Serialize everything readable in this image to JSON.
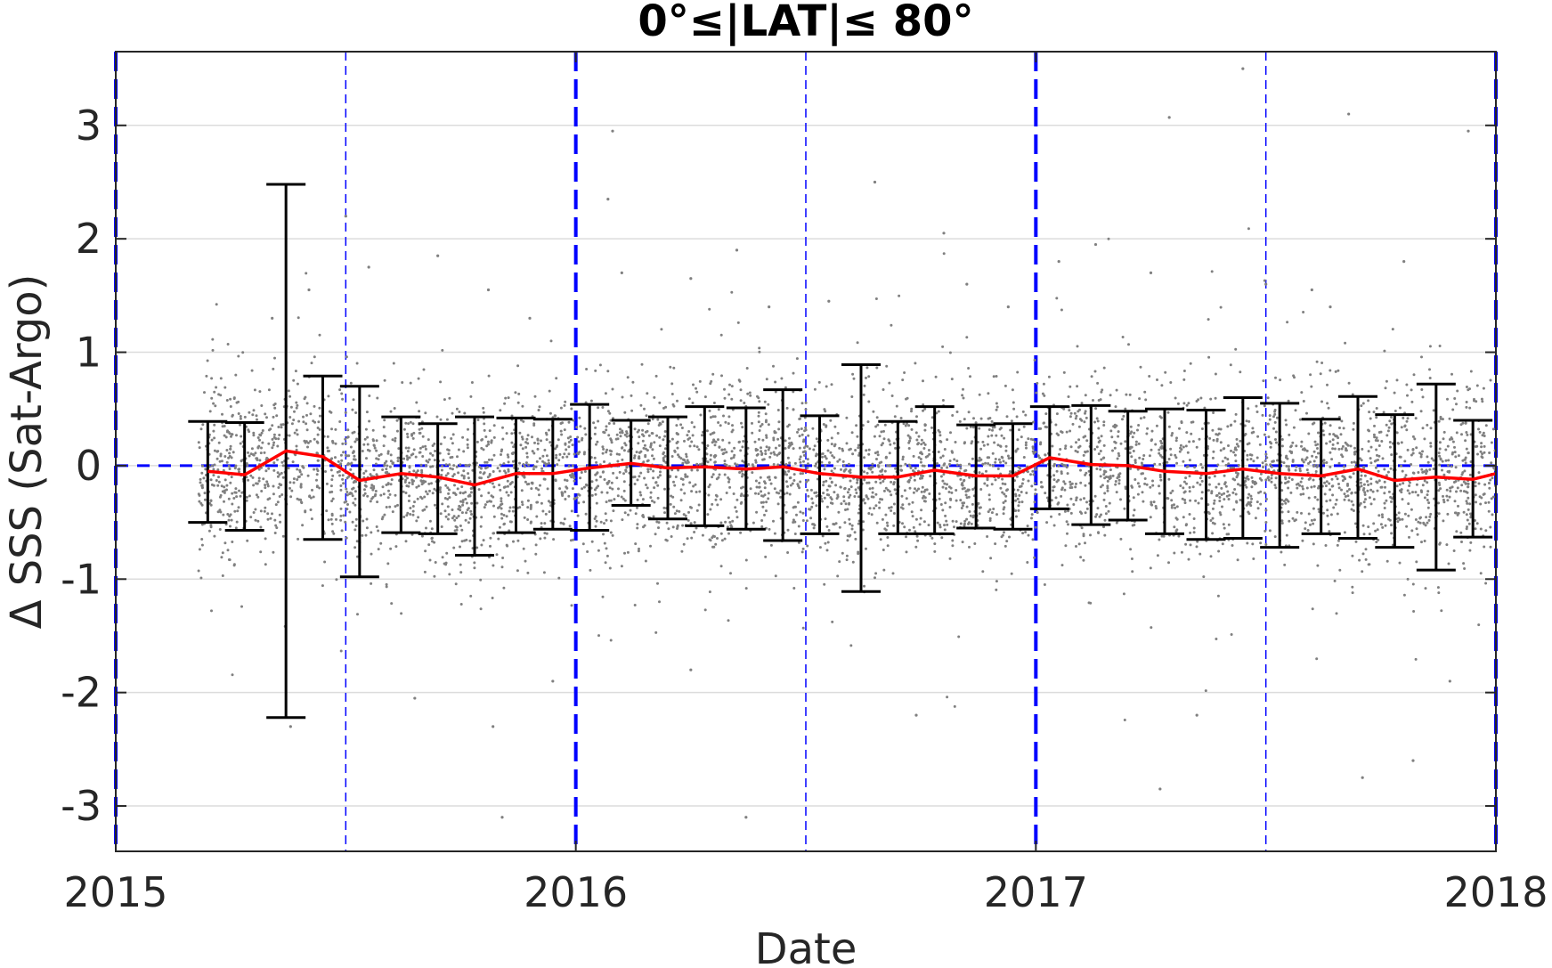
{
  "chart_data": {
    "type": "scatter",
    "title": "0°≤|LAT|≤ 80°",
    "xlabel": "Date",
    "ylabel": "Δ SSS (Sat-Argo)",
    "xlim": [
      2015.0,
      2018.0
    ],
    "ylim": [
      -3.4,
      3.65
    ],
    "xticks": [
      2015,
      2016,
      2017,
      2018
    ],
    "xtick_labels": [
      "2015",
      "2016",
      "2017",
      "2018"
    ],
    "yticks": [
      -3,
      -2,
      -1,
      0,
      1,
      2,
      3
    ],
    "ytick_labels": [
      "-3",
      "-2",
      "-1",
      "0",
      "1",
      "2",
      "3"
    ],
    "grid": true,
    "reference_lines": {
      "zero_line": 0,
      "year_boundaries": [
        2015.0,
        2016.0,
        2017.0,
        2018.0
      ],
      "half_year_marks": [
        2015.5,
        2016.5,
        2017.5
      ]
    },
    "colors": {
      "scatter": "#808080",
      "mean_line": "#ff0000",
      "error_bars": "#000000",
      "reference": "#0000ff",
      "grid": "#dcdcdc",
      "axes": "#262626"
    },
    "series": [
      {
        "type": "line",
        "x": [
          2015.2,
          2015.28,
          2015.37,
          2015.45,
          2015.53,
          2015.62,
          2015.7,
          2015.78,
          2015.87,
          2015.95,
          2016.03,
          2016.12,
          2016.2,
          2016.28,
          2016.37,
          2016.45,
          2016.53,
          2016.62,
          2016.7,
          2016.78,
          2016.87,
          2016.95,
          2017.03,
          2017.12,
          2017.2,
          2017.28,
          2017.37,
          2017.45,
          2017.53,
          2017.62,
          2017.7,
          2017.78,
          2017.87,
          2017.95,
          2018.0
        ],
        "y": [
          -0.05,
          -0.08,
          0.13,
          0.08,
          -0.13,
          -0.07,
          -0.1,
          -0.17,
          -0.07,
          -0.07,
          -0.02,
          0.02,
          -0.02,
          -0.01,
          -0.03,
          -0.01,
          -0.07,
          -0.1,
          -0.1,
          -0.04,
          -0.09,
          -0.09,
          0.07,
          0.01,
          0.0,
          -0.05,
          -0.07,
          -0.03,
          -0.07,
          -0.09,
          -0.03,
          -0.13,
          -0.1,
          -0.12,
          -0.07
        ]
      },
      {
        "type": "errorbar",
        "x": [
          2015.2,
          2015.28,
          2015.37,
          2015.45,
          2015.53,
          2015.62,
          2015.7,
          2015.78,
          2015.87,
          2015.95,
          2016.03,
          2016.12,
          2016.2,
          2016.28,
          2016.37,
          2016.45,
          2016.53,
          2016.62,
          2016.7,
          2016.78,
          2016.87,
          2016.95,
          2017.03,
          2017.12,
          2017.2,
          2017.28,
          2017.37,
          2017.45,
          2017.53,
          2017.62,
          2017.7,
          2017.78,
          2017.87,
          2017.95
        ],
        "lower": [
          -0.5,
          -0.57,
          -2.22,
          -0.65,
          -0.98,
          -0.59,
          -0.6,
          -0.79,
          -0.59,
          -0.56,
          -0.57,
          -0.35,
          -0.47,
          -0.53,
          -0.56,
          -0.66,
          -0.6,
          -1.11,
          -0.6,
          -0.6,
          -0.55,
          -0.56,
          -0.38,
          -0.52,
          -0.48,
          -0.6,
          -0.65,
          -0.64,
          -0.72,
          -0.6,
          -0.64,
          -0.72,
          -0.92,
          -0.63
        ],
        "upper": [
          0.39,
          0.38,
          2.48,
          0.79,
          0.7,
          0.43,
          0.37,
          0.43,
          0.42,
          0.41,
          0.54,
          0.4,
          0.43,
          0.52,
          0.51,
          0.67,
          0.44,
          0.89,
          0.39,
          0.52,
          0.36,
          0.37,
          0.52,
          0.53,
          0.48,
          0.5,
          0.49,
          0.6,
          0.55,
          0.41,
          0.61,
          0.45,
          0.72,
          0.4
        ]
      },
      {
        "type": "scatter",
        "n_points": 5000,
        "x_range": [
          2015.18,
          2018.0
        ],
        "core_spread_sd": 0.35,
        "outliers": [
          [
            2015.38,
            -2.3
          ],
          [
            2015.34,
            1.3
          ],
          [
            2015.42,
            1.55
          ],
          [
            2015.5,
            2.2
          ],
          [
            2015.55,
            1.75
          ],
          [
            2015.7,
            1.85
          ],
          [
            2015.81,
            1.55
          ],
          [
            2015.9,
            1.3
          ],
          [
            2015.82,
            -2.3
          ],
          [
            2015.95,
            -1.9
          ],
          [
            2015.84,
            -3.1
          ],
          [
            2016.08,
            2.95
          ],
          [
            2016.07,
            2.35
          ],
          [
            2016.1,
            1.7
          ],
          [
            2016.25,
            1.65
          ],
          [
            2016.35,
            1.9
          ],
          [
            2016.37,
            -3.1
          ],
          [
            2016.42,
            1.4
          ],
          [
            2016.55,
            1.45
          ],
          [
            2016.65,
            2.5
          ],
          [
            2016.8,
            2.05
          ],
          [
            2016.85,
            1.6
          ],
          [
            2016.94,
            1.4
          ],
          [
            2017.05,
            1.8
          ],
          [
            2017.13,
            1.95
          ],
          [
            2017.25,
            1.7
          ],
          [
            2017.29,
            3.07
          ],
          [
            2017.27,
            -2.85
          ],
          [
            2017.35,
            -2.2
          ],
          [
            2017.45,
            3.5
          ],
          [
            2017.5,
            1.6
          ],
          [
            2017.6,
            1.55
          ],
          [
            2017.68,
            3.1
          ],
          [
            2017.71,
            -2.75
          ],
          [
            2017.8,
            1.8
          ],
          [
            2017.82,
            -2.6
          ],
          [
            2017.94,
            2.95
          ],
          [
            2017.9,
            -1.9
          ],
          [
            2017.64,
            1.4
          ],
          [
            2016.74,
            -2.2
          ],
          [
            2016.25,
            -1.8
          ],
          [
            2015.65,
            -2.05
          ]
        ]
      }
    ]
  }
}
